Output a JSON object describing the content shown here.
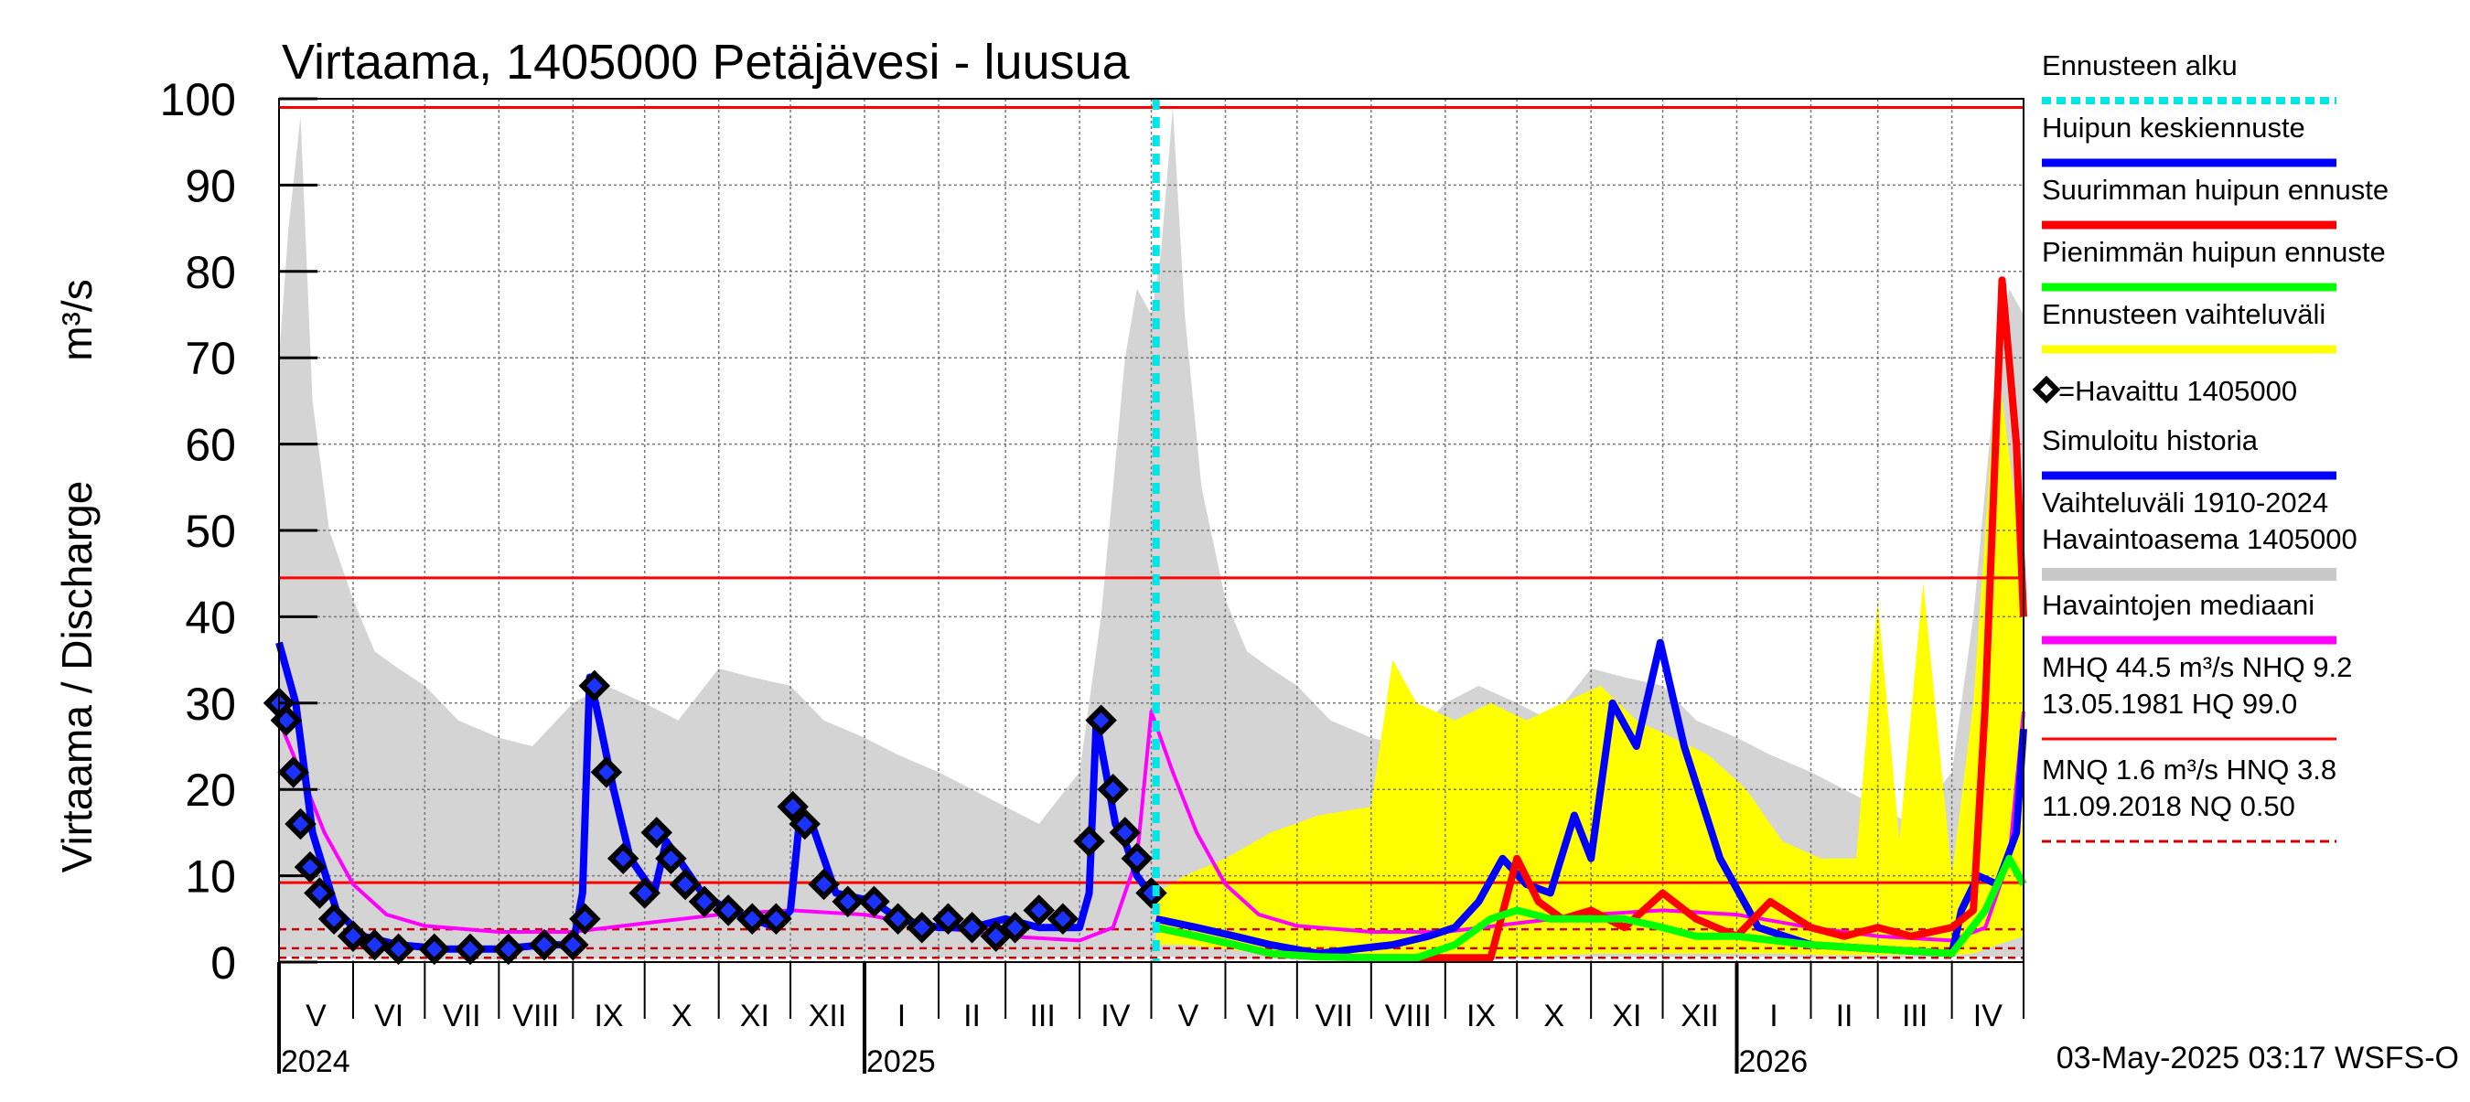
{
  "chart_data": {
    "type": "line",
    "title": "Virtaama, 1405000 Petäjävesi - luusua",
    "ylabel": "Virtaama / Discharge",
    "yunit": "m³/s",
    "ylim": [
      0,
      100
    ],
    "yticks": [
      0,
      10,
      20,
      30,
      40,
      50,
      60,
      70,
      80,
      90,
      100
    ],
    "xlim": [
      "2024-05-01",
      "2026-05-01"
    ],
    "months": [
      "V",
      "VI",
      "VII",
      "VIII",
      "IX",
      "X",
      "XI",
      "XII",
      "I",
      "II",
      "III",
      "IV",
      "V",
      "VI",
      "VII",
      "VIII",
      "IX",
      "X",
      "XI",
      "XII",
      "I",
      "II",
      "III",
      "IV"
    ],
    "years": [
      {
        "label": "2024",
        "date": "2024-05-01"
      },
      {
        "label": "2025",
        "date": "2025-01-01"
      },
      {
        "label": "2026",
        "date": "2026-01-01"
      }
    ],
    "forecast_start": "2025-05-03",
    "grid": true,
    "legend_position": "right",
    "reference_lines": [
      {
        "name": "HQ",
        "value": 99.0,
        "color": "#ff0000",
        "style": "solid"
      },
      {
        "name": "MHQ",
        "value": 44.5,
        "color": "#ff0000",
        "style": "solid"
      },
      {
        "name": "NHQ",
        "value": 9.2,
        "color": "#ff0000",
        "style": "solid"
      },
      {
        "name": "HNQ",
        "value": 3.8,
        "color": "#cc0000",
        "style": "dashed"
      },
      {
        "name": "MNQ",
        "value": 1.6,
        "color": "#cc0000",
        "style": "dashed"
      },
      {
        "name": "NQ",
        "value": 0.5,
        "color": "#cc0000",
        "style": "dashed"
      }
    ],
    "series": [
      {
        "name": "Vaihteluväli 1910-2024 Havaintoasema 1405000",
        "kind": "band",
        "color": "#d4d4d4",
        "x": [
          "2024-05-01",
          "2024-05-05",
          "2024-05-10",
          "2024-05-15",
          "2024-05-22",
          "2024-06-01",
          "2024-06-10",
          "2024-06-20",
          "2024-07-01",
          "2024-07-15",
          "2024-08-01",
          "2024-08-15",
          "2024-09-01",
          "2024-09-15",
          "2024-10-01",
          "2024-10-15",
          "2024-11-01",
          "2024-11-15",
          "2024-12-01",
          "2024-12-15",
          "2025-01-01",
          "2025-01-15",
          "2025-02-01",
          "2025-02-15",
          "2025-03-01",
          "2025-03-15",
          "2025-04-01",
          "2025-04-10",
          "2025-04-20",
          "2025-04-25",
          "2025-05-01",
          "2025-05-05",
          "2025-05-10",
          "2025-05-15",
          "2025-05-22",
          "2025-06-01",
          "2025-06-10",
          "2025-06-20",
          "2025-07-01",
          "2025-07-15",
          "2025-08-01",
          "2025-08-15",
          "2025-09-01",
          "2025-09-15",
          "2025-10-01",
          "2025-10-15",
          "2025-11-01",
          "2025-11-15",
          "2025-12-01",
          "2025-12-15",
          "2026-01-01",
          "2026-01-15",
          "2026-02-01",
          "2026-02-15",
          "2026-03-01",
          "2026-03-15",
          "2026-04-01",
          "2026-04-10",
          "2026-04-20",
          "2026-04-25",
          "2026-05-01"
        ],
        "upper": [
          70,
          85,
          98,
          65,
          50,
          42,
          36,
          34,
          32,
          28,
          26,
          25,
          30,
          32,
          30,
          28,
          34,
          33,
          32,
          28,
          26,
          24,
          22,
          20,
          18,
          16,
          22,
          40,
          70,
          78,
          75,
          82,
          99,
          75,
          55,
          42,
          36,
          34,
          32,
          28,
          26,
          25,
          30,
          32,
          30,
          28,
          34,
          33,
          32,
          28,
          26,
          24,
          22,
          20,
          18,
          16,
          22,
          40,
          70,
          78,
          75
        ],
        "lower": [
          0.6,
          0.6,
          0.6,
          0.5,
          0.5,
          0.4,
          0.4,
          0.4,
          0.3,
          0.3,
          0.3,
          0.3,
          0.4,
          0.4,
          0.5,
          0.5,
          0.6,
          0.6,
          0.6,
          0.6,
          0.6,
          0.6,
          0.5,
          0.5,
          0.5,
          0.5,
          0.6,
          0.6,
          0.6,
          0.6,
          0.6,
          0.6,
          0.6,
          0.5,
          0.5,
          0.4,
          0.4,
          0.4,
          0.3,
          0.3,
          0.3,
          0.3,
          0.4,
          0.4,
          0.5,
          0.5,
          0.6,
          0.6,
          0.6,
          0.6,
          0.6,
          0.6,
          0.5,
          0.5,
          0.5,
          0.5,
          0.6,
          0.6,
          0.6,
          0.6,
          0.6
        ]
      },
      {
        "name": "Ennusteen vaihteluväli",
        "kind": "band",
        "color": "#ffff00",
        "x": [
          "2025-05-03",
          "2025-05-15",
          "2025-06-01",
          "2025-06-20",
          "2025-07-10",
          "2025-08-01",
          "2025-08-10",
          "2025-08-20",
          "2025-09-05",
          "2025-09-20",
          "2025-10-05",
          "2025-10-20",
          "2025-11-05",
          "2025-11-20",
          "2025-12-05",
          "2025-12-20",
          "2026-01-05",
          "2026-01-20",
          "2026-02-05",
          "2026-02-20",
          "2026-03-01",
          "2026-03-10",
          "2026-03-20",
          "2026-04-01",
          "2026-04-10",
          "2026-04-20",
          "2026-05-01"
        ],
        "upper": [
          8,
          10,
          12,
          15,
          17,
          18,
          35,
          30,
          28,
          30,
          28,
          30,
          32,
          28,
          26,
          24,
          20,
          14,
          12,
          12,
          42,
          14,
          44,
          10,
          30,
          70,
          45
        ],
        "lower": [
          2,
          2,
          1.5,
          1,
          0.6,
          0.5,
          0.5,
          0.5,
          0.5,
          0.6,
          0.6,
          0.8,
          1,
          1,
          1,
          1,
          1,
          1,
          0.8,
          0.8,
          0.8,
          0.8,
          0.8,
          0.8,
          1,
          2,
          3
        ]
      },
      {
        "name": "Havaintojen mediaani",
        "kind": "line",
        "color": "#ff00ff",
        "x": [
          "2024-05-01",
          "2024-05-10",
          "2024-05-20",
          "2024-06-01",
          "2024-06-15",
          "2024-07-01",
          "2024-08-01",
          "2024-09-01",
          "2024-10-01",
          "2024-11-01",
          "2024-12-01",
          "2025-01-01",
          "2025-02-01",
          "2025-03-01",
          "2025-04-01",
          "2025-04-15",
          "2025-04-25",
          "2025-05-01",
          "2025-05-10",
          "2025-05-20",
          "2025-06-01",
          "2025-06-15",
          "2025-07-01",
          "2025-08-01",
          "2025-09-01",
          "2025-10-01",
          "2025-11-01",
          "2025-12-01",
          "2026-01-01",
          "2026-02-01",
          "2026-03-01",
          "2026-04-01",
          "2026-04-15",
          "2026-04-25",
          "2026-05-01"
        ],
        "y": [
          28,
          22,
          15,
          9,
          5.5,
          4.2,
          3.5,
          3.5,
          4.5,
          5.5,
          6,
          5.5,
          4,
          3,
          2.5,
          4,
          12,
          29,
          22,
          15,
          9,
          5.5,
          4.2,
          3.5,
          3.5,
          4.5,
          5.5,
          6,
          5.5,
          4,
          3,
          2.5,
          4,
          12,
          29
        ]
      },
      {
        "name": "Simuloitu historia",
        "kind": "line",
        "color": "#0000ff",
        "x": [
          "2024-05-01",
          "2024-05-08",
          "2024-05-15",
          "2024-05-25",
          "2024-06-05",
          "2024-06-20",
          "2024-07-10",
          "2024-08-01",
          "2024-08-20",
          "2024-09-01",
          "2024-09-05",
          "2024-09-08",
          "2024-09-12",
          "2024-09-18",
          "2024-09-25",
          "2024-10-05",
          "2024-10-10",
          "2024-10-15",
          "2024-10-25",
          "2024-11-05",
          "2024-11-15",
          "2024-11-25",
          "2024-12-01",
          "2024-12-05",
          "2024-12-10",
          "2024-12-20",
          "2025-01-05",
          "2025-01-15",
          "2025-02-01",
          "2025-02-15",
          "2025-03-01",
          "2025-03-15",
          "2025-04-01",
          "2025-04-05",
          "2025-04-08",
          "2025-04-12",
          "2025-04-16",
          "2025-04-20",
          "2025-04-25",
          "2025-05-03"
        ],
        "y": [
          37,
          30,
          15,
          6,
          3,
          2,
          1.5,
          1.5,
          2,
          2,
          8,
          33,
          28,
          20,
          12,
          8,
          14,
          12,
          8,
          6,
          5,
          4,
          6,
          17,
          16,
          8,
          7,
          5,
          4,
          4,
          5,
          4,
          4,
          8,
          28,
          22,
          16,
          14,
          10,
          7
        ]
      },
      {
        "name": "Huipun keskiennuste",
        "kind": "line",
        "color": "#0000ff",
        "x": [
          "2025-05-03",
          "2025-05-20",
          "2025-06-05",
          "2025-06-20",
          "2025-07-10",
          "2025-07-25",
          "2025-08-10",
          "2025-08-25",
          "2025-09-05",
          "2025-09-15",
          "2025-09-25",
          "2025-10-05",
          "2025-10-15",
          "2025-10-25",
          "2025-11-01",
          "2025-11-10",
          "2025-11-20",
          "2025-11-30",
          "2025-12-10",
          "2025-12-25",
          "2026-01-10",
          "2026-02-01",
          "2026-03-01",
          "2026-04-01",
          "2026-04-05",
          "2026-04-12",
          "2026-04-20",
          "2026-04-28",
          "2026-05-01"
        ],
        "y": [
          5,
          4,
          3,
          2,
          1,
          1.5,
          2,
          3,
          4,
          7,
          12,
          9,
          8,
          17,
          12,
          30,
          25,
          37,
          25,
          12,
          4,
          2,
          1.5,
          1,
          6,
          10,
          9,
          15,
          27
        ]
      },
      {
        "name": "Suurimman huipun ennuste",
        "kind": "line",
        "color": "#ff0000",
        "x": [
          "2025-05-03",
          "2025-05-20",
          "2025-06-05",
          "2025-06-20",
          "2025-07-10",
          "2025-08-01",
          "2025-08-20",
          "2025-09-05",
          "2025-09-20",
          "2025-10-01",
          "2025-10-10",
          "2025-10-20",
          "2025-11-01",
          "2025-11-15",
          "2025-12-01",
          "2025-12-15",
          "2026-01-01",
          "2026-01-15",
          "2026-02-01",
          "2026-02-15",
          "2026-03-01",
          "2026-03-15",
          "2026-04-01",
          "2026-04-10",
          "2026-04-15",
          "2026-04-22",
          "2026-04-28",
          "2026-05-01"
        ],
        "y": [
          4,
          3,
          2,
          1,
          0.6,
          0.5,
          0.5,
          0.5,
          0.5,
          12,
          7,
          5,
          6,
          4,
          8,
          5,
          3,
          7,
          4,
          3,
          4,
          3,
          4,
          6,
          30,
          79,
          60,
          40
        ]
      },
      {
        "name": "Pienimmän huipun ennuste",
        "kind": "line",
        "color": "#00ff00",
        "x": [
          "2025-05-03",
          "2025-05-20",
          "2025-06-05",
          "2025-06-20",
          "2025-07-10",
          "2025-08-01",
          "2025-08-20",
          "2025-09-05",
          "2025-09-20",
          "2025-10-01",
          "2025-10-15",
          "2025-11-01",
          "2025-11-15",
          "2025-12-01",
          "2025-12-15",
          "2026-01-01",
          "2026-02-01",
          "2026-03-01",
          "2026-04-01",
          "2026-04-15",
          "2026-04-25",
          "2026-05-01"
        ],
        "y": [
          4,
          3,
          2,
          1,
          0.6,
          0.5,
          0.5,
          2,
          5,
          6,
          5,
          5,
          5,
          4,
          3,
          3,
          2,
          1.5,
          1,
          6,
          12,
          9
        ]
      },
      {
        "name": "=Havaittu 1405000",
        "kind": "points",
        "color": "#000000",
        "x": [
          "2024-05-01",
          "2024-05-04",
          "2024-05-07",
          "2024-05-10",
          "2024-05-14",
          "2024-05-18",
          "2024-05-24",
          "2024-06-01",
          "2024-06-10",
          "2024-06-20",
          "2024-07-05",
          "2024-07-20",
          "2024-08-05",
          "2024-08-20",
          "2024-09-01",
          "2024-09-06",
          "2024-09-10",
          "2024-09-15",
          "2024-09-22",
          "2024-10-01",
          "2024-10-06",
          "2024-10-12",
          "2024-10-18",
          "2024-10-26",
          "2024-11-05",
          "2024-11-15",
          "2024-11-25",
          "2024-12-02",
          "2024-12-07",
          "2024-12-15",
          "2024-12-25",
          "2025-01-05",
          "2025-01-15",
          "2025-01-25",
          "2025-02-05",
          "2025-02-15",
          "2025-02-25",
          "2025-03-05",
          "2025-03-15",
          "2025-03-25",
          "2025-04-05",
          "2025-04-10",
          "2025-04-15",
          "2025-04-20",
          "2025-04-25",
          "2025-05-01"
        ],
        "y": [
          30,
          28,
          22,
          16,
          11,
          8,
          5,
          3,
          2,
          1.5,
          1.5,
          1.5,
          1.5,
          2,
          2,
          5,
          32,
          22,
          12,
          8,
          15,
          12,
          9,
          7,
          6,
          5,
          5,
          18,
          16,
          9,
          7,
          7,
          5,
          4,
          5,
          4,
          3,
          4,
          6,
          5,
          14,
          28,
          20,
          15,
          12,
          8
        ]
      }
    ],
    "legend": [
      {
        "label": "Ennusteen alku",
        "color": "#00e6e6",
        "style": "dashed"
      },
      {
        "label": "Huipun keskiennuste",
        "color": "#0000ff",
        "style": "line"
      },
      {
        "label": "Suurimman huipun ennuste",
        "color": "#ff0000",
        "style": "line"
      },
      {
        "label": "Pienimmän huipun ennuste",
        "color": "#00ff00",
        "style": "line"
      },
      {
        "label": "Ennusteen vaihteluväli",
        "color": "#ffff00",
        "style": "line"
      },
      {
        "label": "=Havaittu 1405000",
        "color": "#000000",
        "style": "marker"
      },
      {
        "label": "Simuloitu historia",
        "color": "#0000ff",
        "style": "line"
      },
      {
        "label": "Vaihteluväli 1910-2024\n Havaintoasema 1405000",
        "color": "#c8c8c8",
        "style": "band"
      },
      {
        "label": "Havaintojen mediaani",
        "color": "#ff00ff",
        "style": "line"
      },
      {
        "label": "MHQ 44.5 m³/s NHQ  9.2\n13.05.1981 HQ 99.0",
        "color": "#ff0000",
        "style": "line"
      },
      {
        "label": "MNQ  1.6 m³/s HNQ  3.8\n11.09.2018 NQ 0.50",
        "color": "#cc0000",
        "style": "dashed"
      }
    ],
    "footer": "03-May-2025 03:17 WSFS-O"
  }
}
